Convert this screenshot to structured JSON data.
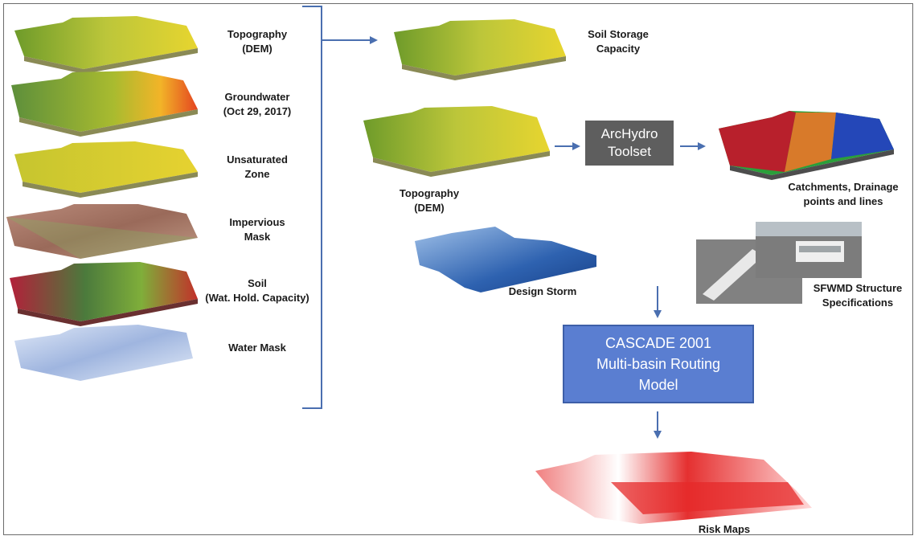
{
  "inputs": [
    {
      "line1": "Topography",
      "line2": "(DEM)"
    },
    {
      "line1": "Groundwater",
      "line2": "(Oct 29, 2017)"
    },
    {
      "line1": "Unsaturated",
      "line2": "Zone"
    },
    {
      "line1": "Impervious",
      "line2": "Mask"
    },
    {
      "line1": "Soil",
      "line2": "(Wat. Hold. Capacity)"
    },
    {
      "line1": "Water Mask",
      "line2": ""
    }
  ],
  "soil_storage": {
    "line1": "Soil Storage",
    "line2": "Capacity"
  },
  "topography_dem": {
    "line1": "Topography",
    "line2": "(DEM)"
  },
  "archydro": {
    "line1": "ArcHydro",
    "line2": "Toolset"
  },
  "catchments": {
    "line1": "Catchments, Drainage",
    "line2": "points and lines"
  },
  "design_storm": "Design Storm",
  "sfwmd": {
    "line1": "SFWMD Structure",
    "line2": "Specifications"
  },
  "cascade": {
    "line1": "CASCADE 2001",
    "line2": "Multi-basin Routing",
    "line3": "Model"
  },
  "risk_maps": "Risk Maps",
  "colors": {
    "arrow": "#4a6fb0",
    "archydro_box": "#5e5e5e",
    "cascade_box": "#5a7ed1",
    "cascade_border": "#3d5fa8"
  }
}
